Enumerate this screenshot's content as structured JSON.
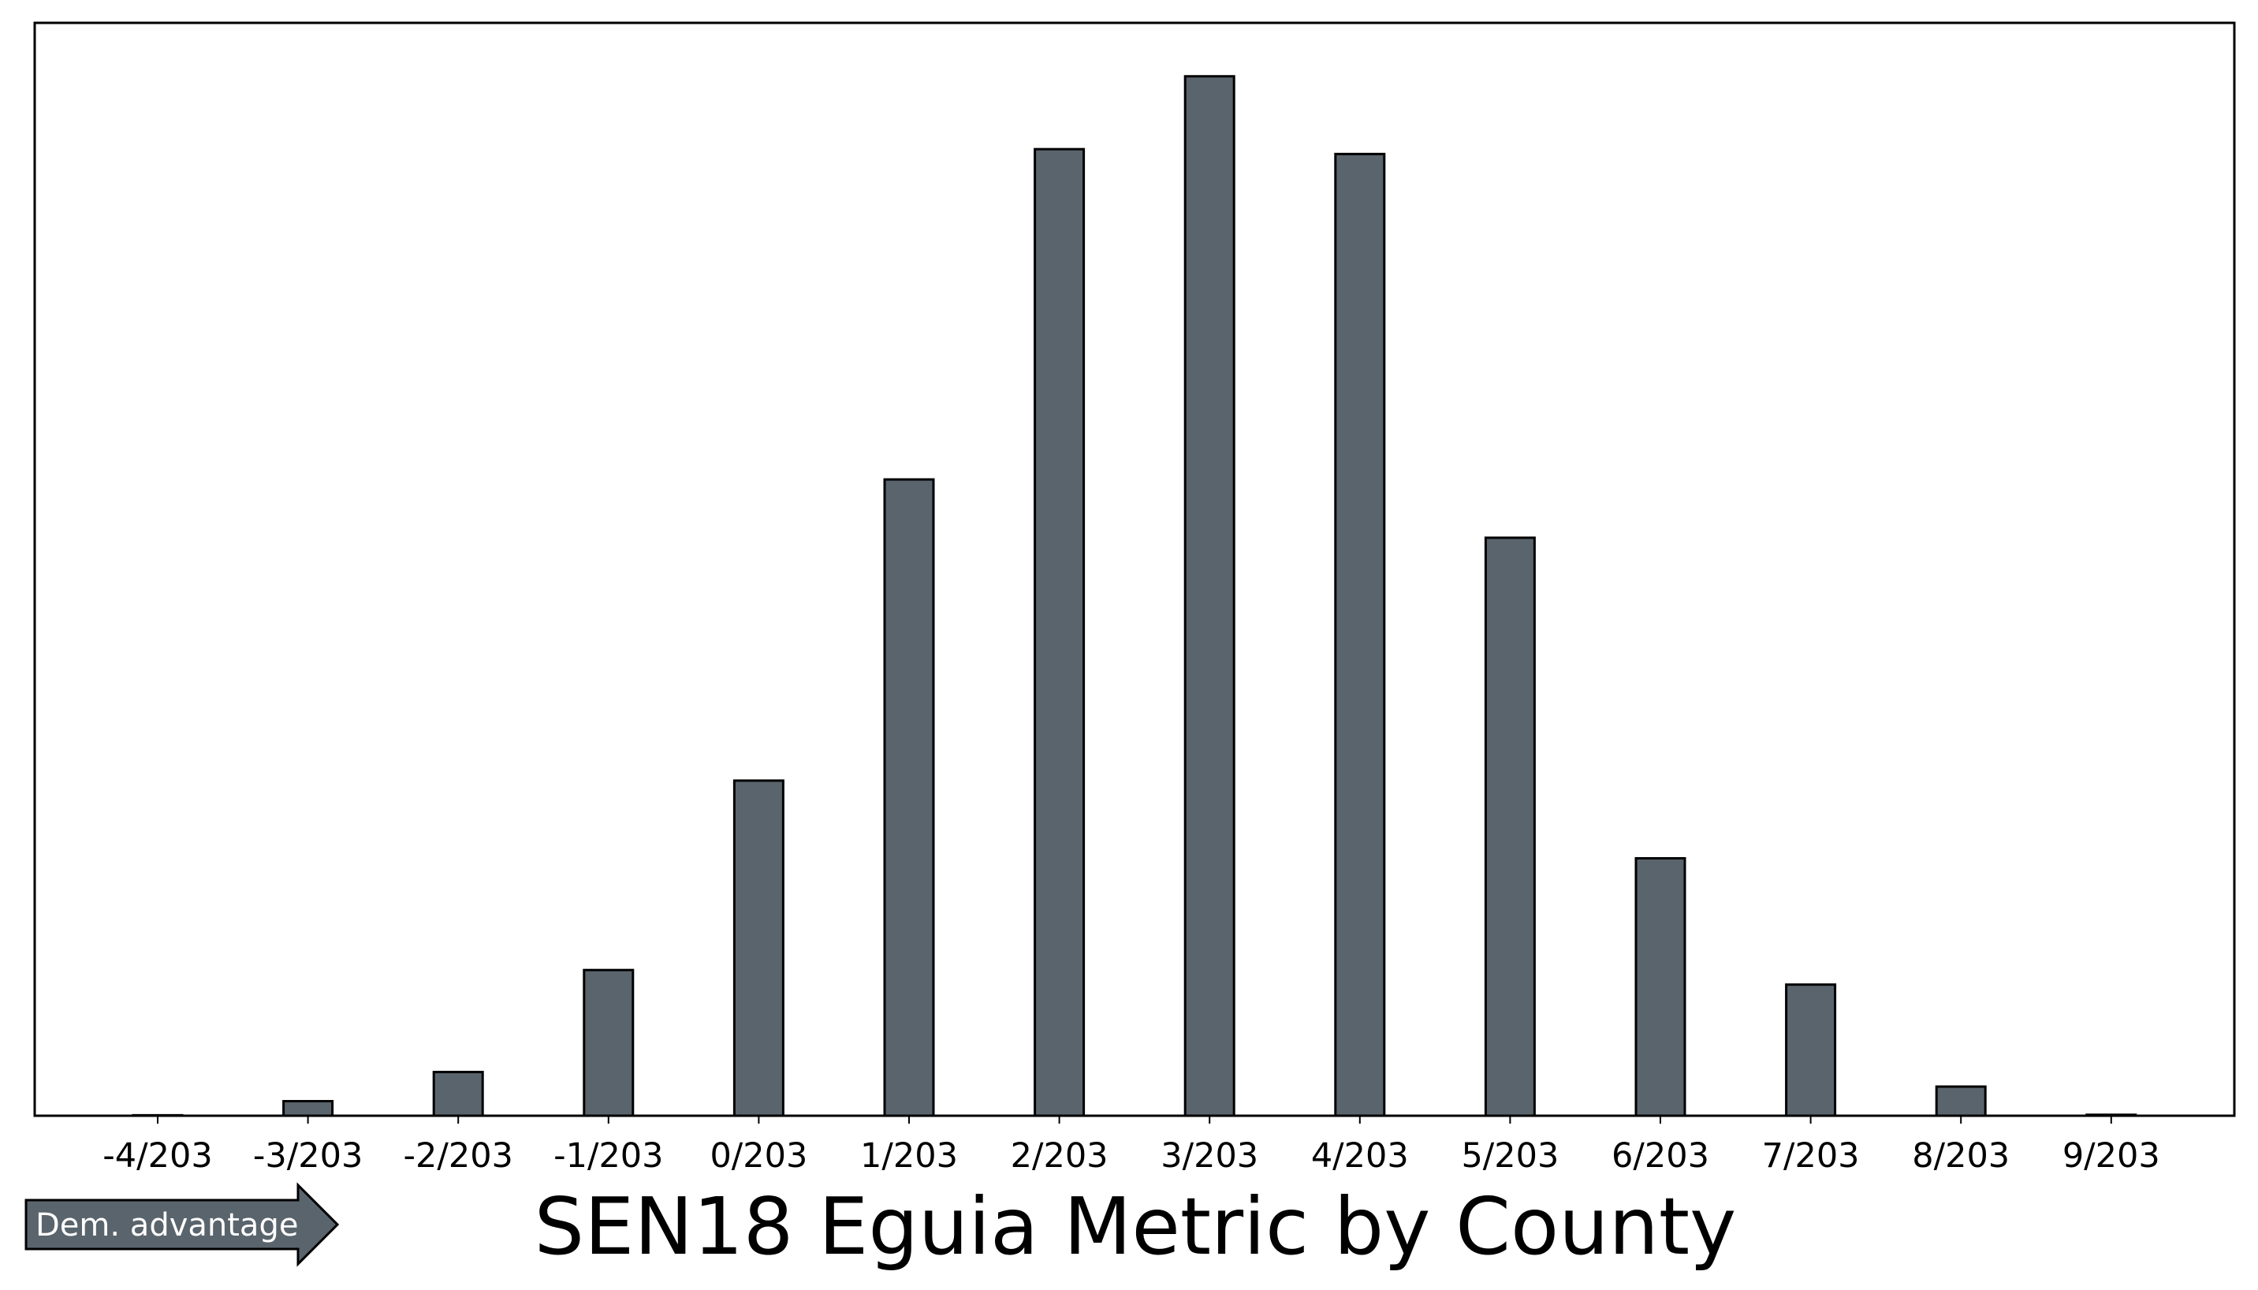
{
  "chart_data": {
    "type": "bar",
    "title": "SEN18 Eguia Metric by County",
    "xlabel": "",
    "ylabel": "",
    "categories": [
      "-4/203",
      "-3/203",
      "-2/203",
      "-1/203",
      "0/203",
      "1/203",
      "2/203",
      "3/203",
      "4/203",
      "5/203",
      "6/203",
      "7/203",
      "8/203",
      "9/203"
    ],
    "values": [
      0.05,
      1.5,
      4.5,
      15,
      34.5,
      65.5,
      99.5,
      107,
      99,
      59.5,
      26.5,
      13.5,
      3,
      0.1
    ],
    "ylim": [
      0,
      112.5
    ],
    "y_ticks_shown": false,
    "grid": false,
    "bar_color": "#5a646c",
    "bar_edge_color": "#000000"
  },
  "annotation": {
    "label": "Dem. advantage",
    "fill": "#5a646c",
    "text_color": "#ffffff"
  }
}
